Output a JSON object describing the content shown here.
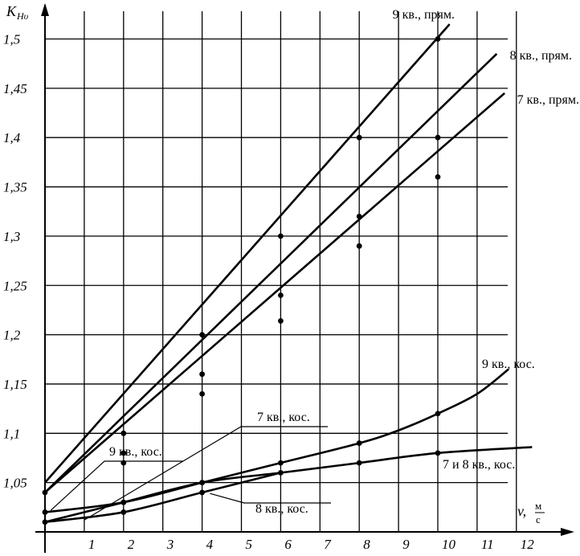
{
  "chart_data": {
    "type": "line",
    "ylabel": {
      "main": "K",
      "sub": "Hυ"
    },
    "xlabel": {
      "var": "v,",
      "unit_num": "м",
      "unit_den": "с"
    },
    "xlim": [
      0,
      13
    ],
    "ylim": [
      1.0,
      1.53
    ],
    "x_ticks": [
      1,
      2,
      3,
      4,
      5,
      6,
      7,
      8,
      9,
      10,
      11,
      12
    ],
    "x_tick_labels": [
      "1",
      "2",
      "3",
      "4",
      "5",
      "6",
      "7",
      "8",
      "9",
      "10",
      "11",
      "12"
    ],
    "y_ticks": [
      1.05,
      1.1,
      1.15,
      1.2,
      1.25,
      1.3,
      1.35,
      1.4,
      1.45,
      1.5
    ],
    "y_tick_labels": [
      "1,05",
      "1,1",
      "1,15",
      "1,2",
      "1,25",
      "1,3",
      "1,35",
      "1,4",
      "1,45",
      "1,5"
    ],
    "grid": true,
    "series": [
      {
        "name": "9 кв., прям.",
        "curve": [
          [
            0,
            1.05
          ],
          [
            10.3,
            1.515
          ]
        ],
        "markers": [
          [
            2,
            1.1
          ],
          [
            4,
            1.2
          ],
          [
            6,
            1.3
          ],
          [
            8,
            1.4
          ],
          [
            10,
            1.5
          ]
        ]
      },
      {
        "name": "8 кв., прям.",
        "curve": [
          [
            0,
            1.04
          ],
          [
            11.5,
            1.485
          ]
        ],
        "markers": [
          [
            2,
            1.08
          ],
          [
            4,
            1.16
          ],
          [
            6,
            1.24
          ],
          [
            8,
            1.32
          ],
          [
            10,
            1.4
          ]
        ]
      },
      {
        "name": "7 кв., прям.",
        "curve": [
          [
            0,
            1.04
          ],
          [
            11.7,
            1.445
          ]
        ],
        "markers": [
          [
            2,
            1.07
          ],
          [
            4,
            1.14
          ],
          [
            6,
            1.214
          ],
          [
            8,
            1.29
          ],
          [
            10,
            1.36
          ]
        ]
      },
      {
        "name": "9 кв., кос.",
        "curve": [
          [
            0,
            1.02
          ],
          [
            2,
            1.03
          ],
          [
            4,
            1.05
          ],
          [
            6,
            1.07
          ],
          [
            8,
            1.09
          ],
          [
            9,
            1.103
          ],
          [
            10,
            1.12
          ],
          [
            11,
            1.14
          ],
          [
            11.8,
            1.165
          ]
        ],
        "markers": [
          [
            2,
            1.03
          ],
          [
            4,
            1.05
          ],
          [
            6,
            1.07
          ],
          [
            8,
            1.09
          ],
          [
            10,
            1.12
          ]
        ]
      },
      {
        "name": "7 и 8  кв., кос.",
        "curve": [
          [
            0,
            1.01
          ],
          [
            1,
            1.02
          ],
          [
            2,
            1.03
          ],
          [
            4,
            1.05
          ],
          [
            6,
            1.06
          ],
          [
            8,
            1.07
          ],
          [
            10,
            1.08
          ],
          [
            12.4,
            1.086
          ]
        ],
        "markers": [
          [
            2,
            1.03
          ],
          [
            4,
            1.05
          ],
          [
            6,
            1.06
          ],
          [
            8,
            1.07
          ],
          [
            10,
            1.08
          ]
        ]
      },
      {
        "name": "8 кв., кос.",
        "curve": [
          [
            0,
            1.01
          ],
          [
            2,
            1.02
          ],
          [
            4,
            1.04
          ],
          [
            6,
            1.06
          ]
        ],
        "markers": [
          [
            0,
            1.01
          ],
          [
            2,
            1.02
          ],
          [
            4,
            1.04
          ]
        ]
      }
    ],
    "extra_markers": [
      [
        0,
        1.04
      ],
      [
        0,
        1.02
      ]
    ],
    "annotations": [
      {
        "text": "9 кв., прям.",
        "anchor": "end"
      },
      {
        "text": "8 кв., прям.",
        "anchor": "end"
      },
      {
        "text": "7 кв., прям.",
        "anchor": "end"
      },
      {
        "text": "9 кв., кос.",
        "anchor": "start"
      },
      {
        "text": "7 и 8  кв., кос.",
        "anchor": "start"
      },
      {
        "text": "7 кв., кос.",
        "anchor": "start"
      },
      {
        "text": "9 кв., кос.",
        "anchor": "start"
      },
      {
        "text": "8 кв., кос.",
        "anchor": "start"
      }
    ]
  }
}
